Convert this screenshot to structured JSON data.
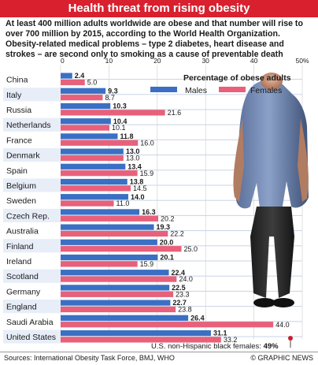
{
  "header": {
    "title": "Health threat from rising obesity"
  },
  "intro": "At least 400 million adults worldwide are obese and that number will rise to over 700 million by 2015, according to the World Health Organization. Obesity-related medical problems – type 2 diabetes, heart disease and strokes – are second only to smoking as a cause of preventable death",
  "footer": {
    "source": "Sources: International Obesity Task Force, BMJ, WHO",
    "credit": "© GRAPHIC NEWS"
  },
  "colors": {
    "title_bar": "#d8202e",
    "males": "#3a6fc4",
    "females": "#e8607a",
    "row_band": "#5a7fb5",
    "gridline": "#cccccc"
  },
  "chart_data": {
    "type": "bar",
    "orientation": "horizontal",
    "ylabel": "Percentage of obese adults",
    "categories": [
      "China",
      "Italy",
      "Russia",
      "Netherlands",
      "France",
      "Denmark",
      "Spain",
      "Belgium",
      "Sweden",
      "Czech Rep.",
      "Australia",
      "Finland",
      "Ireland",
      "Scotland",
      "Germany",
      "England",
      "Saudi Arabia",
      "United States"
    ],
    "series": [
      {
        "name": "Males",
        "color": "#3a6fc4",
        "values": [
          2.4,
          9.3,
          10.3,
          10.4,
          11.8,
          13.0,
          13.4,
          13.8,
          14.0,
          16.3,
          19.3,
          20.0,
          20.1,
          22.4,
          22.5,
          22.7,
          26.4,
          31.1
        ]
      },
      {
        "name": "Females",
        "color": "#e8607a",
        "values": [
          5.0,
          8.7,
          21.6,
          10.1,
          16.0,
          13.0,
          15.9,
          14.5,
          11.0,
          20.2,
          22.2,
          25.0,
          15.9,
          24.0,
          23.3,
          23.8,
          44.0,
          33.2
        ]
      }
    ],
    "xlim": [
      0,
      50
    ],
    "xticks": [
      "0",
      "10",
      "20",
      "30",
      "40",
      "50%"
    ],
    "legend_placement": "top-right",
    "grid": true,
    "annotation": {
      "text_prefix": "U.S. non-Hispanic black females: ",
      "text_value": "49%",
      "value": 49
    }
  }
}
